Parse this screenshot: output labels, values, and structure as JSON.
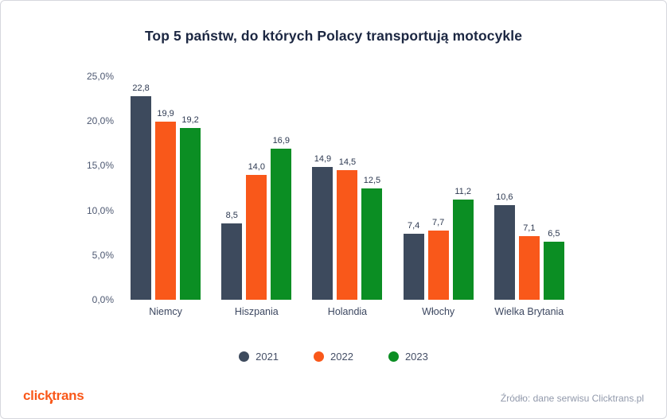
{
  "card": {
    "logo": "clicktrans",
    "source": "Źródło: dane serwisu Clicktrans.pl"
  },
  "colors": {
    "series_2021": "#3d4a5d",
    "series_2022": "#f9581a",
    "series_2023": "#0b8e23",
    "title_text": "#1c2742",
    "axis_text": "#4d5871",
    "source_text": "#9199ab",
    "card_border": "#d6d7dd"
  },
  "chart_data": {
    "type": "bar",
    "title": "Top 5 państw, do których Polacy transportują motocykle",
    "categories": [
      "Niemcy",
      "Hiszpania",
      "Holandia",
      "Włochy",
      "Wielka Brytania"
    ],
    "series": [
      {
        "name": "2021",
        "color": "#3d4a5d",
        "values": [
          22.8,
          8.5,
          14.9,
          7.4,
          10.6
        ]
      },
      {
        "name": "2022",
        "color": "#f9581a",
        "values": [
          19.9,
          14.0,
          14.5,
          7.7,
          7.1
        ]
      },
      {
        "name": "2023",
        "color": "#0b8e23",
        "values": [
          19.2,
          16.9,
          12.5,
          11.2,
          6.5
        ]
      }
    ],
    "ylim": [
      0,
      25
    ],
    "yticks": [
      {
        "value": 0,
        "label": "0,0%"
      },
      {
        "value": 5,
        "label": "5,0%"
      },
      {
        "value": 10,
        "label": "10,0%"
      },
      {
        "value": 15,
        "label": "15,0%"
      },
      {
        "value": 20,
        "label": "20,0%"
      },
      {
        "value": 25,
        "label": "25,0%"
      }
    ],
    "value_labels": true,
    "value_label_format": "comma-decimal-1",
    "grid": false,
    "legend_position": "bottom"
  }
}
